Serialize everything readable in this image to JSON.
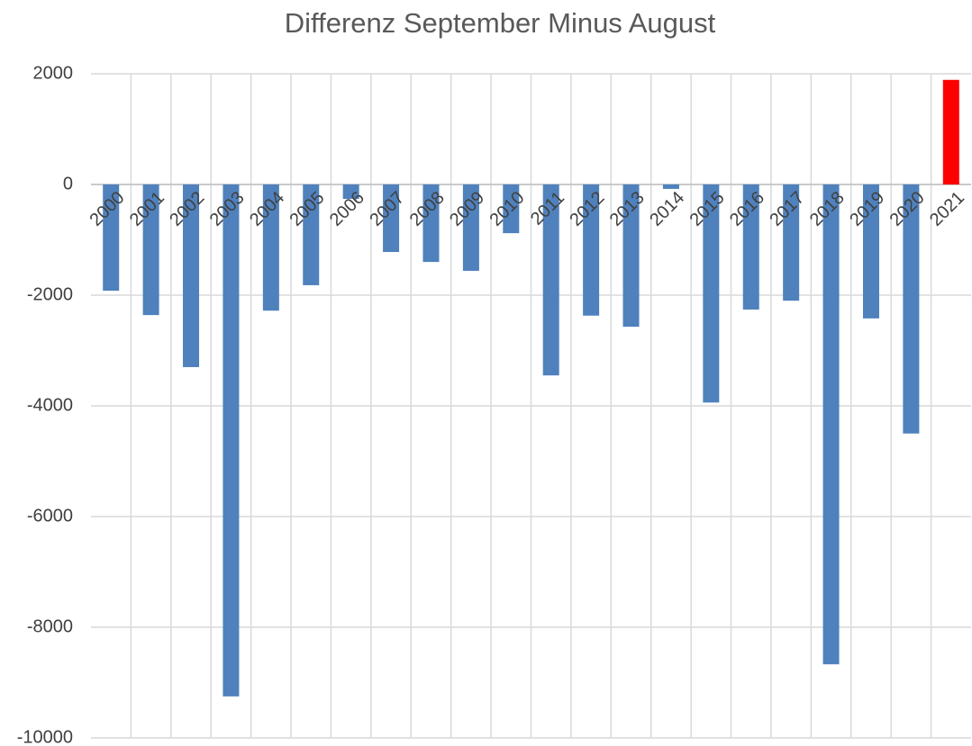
{
  "chart_data": {
    "type": "bar",
    "title": "Differenz September Minus August",
    "categories": [
      "2000",
      "2001",
      "2002",
      "2003",
      "2004",
      "2005",
      "2006",
      "2007",
      "2008",
      "2009",
      "2010",
      "2011",
      "2012",
      "2013",
      "2014",
      "2015",
      "2016",
      "2017",
      "2018",
      "2019",
      "2020",
      "2021"
    ],
    "values": [
      -1920,
      -2360,
      -3300,
      -9250,
      -2280,
      -1820,
      -260,
      -1220,
      -1400,
      -1560,
      -880,
      -3450,
      -2370,
      -2570,
      -80,
      -3940,
      -2260,
      -2100,
      -8670,
      -2420,
      -4500,
      1890
    ],
    "colors": [
      "#4f81bd",
      "#4f81bd",
      "#4f81bd",
      "#4f81bd",
      "#4f81bd",
      "#4f81bd",
      "#4f81bd",
      "#4f81bd",
      "#4f81bd",
      "#4f81bd",
      "#4f81bd",
      "#4f81bd",
      "#4f81bd",
      "#4f81bd",
      "#4f81bd",
      "#4f81bd",
      "#4f81bd",
      "#4f81bd",
      "#4f81bd",
      "#4f81bd",
      "#4f81bd",
      "#ff0000"
    ],
    "ylim": [
      -10000,
      2000
    ],
    "yticks": [
      -10000,
      -8000,
      -6000,
      -4000,
      -2000,
      0,
      2000
    ],
    "grid": true
  }
}
